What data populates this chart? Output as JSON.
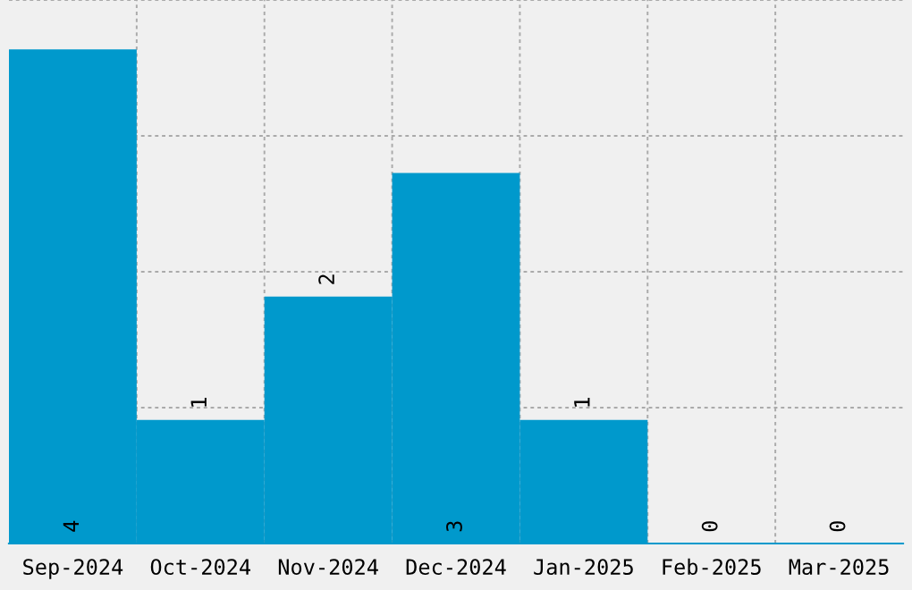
{
  "chart_data": {
    "type": "bar",
    "categories": [
      "Sep-2024",
      "Oct-2024",
      "Nov-2024",
      "Dec-2024",
      "Jan-2025",
      "Feb-2025",
      "Mar-2025"
    ],
    "values": [
      4,
      1,
      2,
      3,
      1,
      0,
      0
    ],
    "color": "#0099cc",
    "data_labels": true,
    "grid": true,
    "tick_labels": "x",
    "ylim": [
      0,
      4.4
    ],
    "yticks": [
      {
        "value": 1.1,
        "label": null
      },
      {
        "value": 2.2,
        "label": null
      },
      {
        "value": 3.3,
        "label": null
      },
      {
        "value": 4.4,
        "label": null
      }
    ]
  }
}
